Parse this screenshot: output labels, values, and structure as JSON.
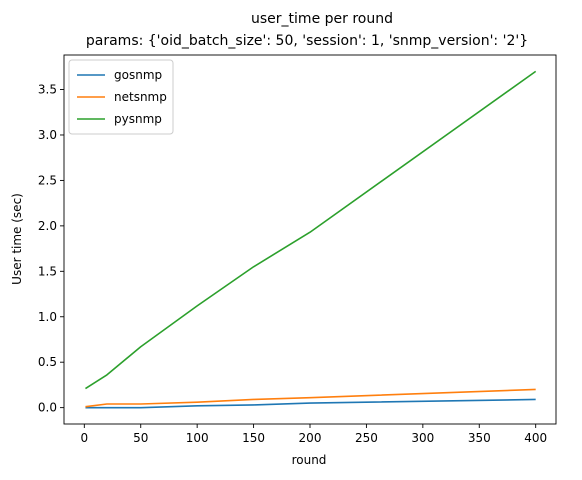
{
  "chart_data": {
    "type": "line",
    "title": "user_time per round",
    "subtitle": "params: {'oid_batch_size': 50, 'session': 1, 'snmp_version': '2'}",
    "xlabel": "round",
    "ylabel": "User time (sec)",
    "xlim": [
      -18,
      418
    ],
    "ylim": [
      -0.18,
      3.88
    ],
    "xticks": [
      0,
      50,
      100,
      150,
      200,
      250,
      300,
      350,
      400
    ],
    "xtick_labels": [
      "0",
      "50",
      "100",
      "150",
      "200",
      "250",
      "300",
      "350",
      "400"
    ],
    "yticks": [
      0.0,
      0.5,
      1.0,
      1.5,
      2.0,
      2.5,
      3.0,
      3.5
    ],
    "ytick_labels": [
      "0.0",
      "0.5",
      "1.0",
      "1.5",
      "2.0",
      "2.5",
      "3.0",
      "3.5"
    ],
    "grid": false,
    "legend_position": "upper-left",
    "x": [
      1,
      20,
      50,
      100,
      150,
      200,
      400
    ],
    "series": [
      {
        "name": "gosnmp",
        "color": "#1f77b4",
        "values": [
          0.0,
          0.0,
          0.0,
          0.02,
          0.03,
          0.05,
          0.09
        ]
      },
      {
        "name": "netsnmp",
        "color": "#ff7f0e",
        "values": [
          0.01,
          0.04,
          0.04,
          0.06,
          0.09,
          0.11,
          0.2
        ]
      },
      {
        "name": "pysnmp",
        "color": "#2ca02c",
        "values": [
          0.21,
          0.36,
          0.67,
          1.12,
          1.55,
          1.93,
          3.7
        ]
      }
    ]
  }
}
